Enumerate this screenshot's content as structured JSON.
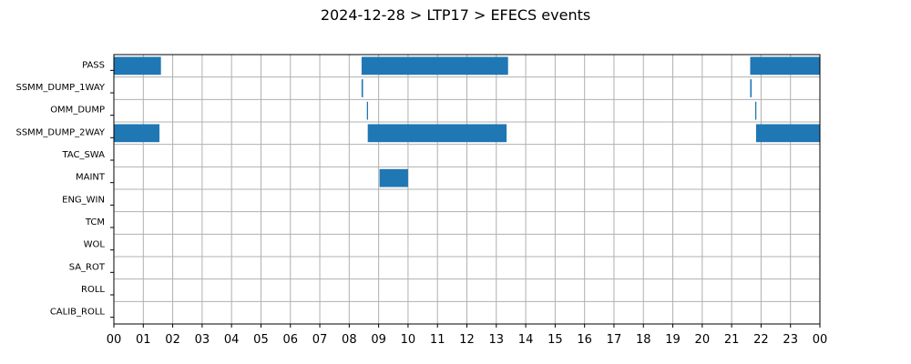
{
  "chart_data": {
    "type": "bar",
    "orientation": "horizontal-timeline",
    "title": "2024-12-28 > LTP17 > EFECS events",
    "xlabel": "",
    "ylabel": "",
    "x_unit": "hour",
    "xlim": [
      0,
      24
    ],
    "x_tick_labels": [
      "00",
      "01",
      "02",
      "03",
      "04",
      "05",
      "06",
      "07",
      "08",
      "09",
      "10",
      "11",
      "12",
      "13",
      "14",
      "15",
      "16",
      "17",
      "18",
      "19",
      "20",
      "21",
      "22",
      "23",
      "00"
    ],
    "categories": [
      "PASS",
      "SSMM_DUMP_1WAY",
      "OMM_DUMP",
      "SSMM_DUMP_2WAY",
      "TAC_SWA",
      "MAINT",
      "ENG_WIN",
      "TCM",
      "WOL",
      "SA_ROT",
      "ROLL",
      "CALIB_ROLL"
    ],
    "grid": true,
    "bar_color": "#1f77b4",
    "events": [
      {
        "category": "PASS",
        "start": 0.0,
        "end": 1.6
      },
      {
        "category": "PASS",
        "start": 8.42,
        "end": 13.4
      },
      {
        "category": "PASS",
        "start": 21.63,
        "end": 24.0
      },
      {
        "category": "SSMM_DUMP_1WAY",
        "start": 8.42,
        "end": 8.47
      },
      {
        "category": "SSMM_DUMP_1WAY",
        "start": 21.63,
        "end": 21.68
      },
      {
        "category": "OMM_DUMP",
        "start": 8.6,
        "end": 8.64
      },
      {
        "category": "OMM_DUMP",
        "start": 21.8,
        "end": 21.84
      },
      {
        "category": "SSMM_DUMP_2WAY",
        "start": 0.0,
        "end": 1.55
      },
      {
        "category": "SSMM_DUMP_2WAY",
        "start": 8.63,
        "end": 13.35
      },
      {
        "category": "SSMM_DUMP_2WAY",
        "start": 21.83,
        "end": 24.0
      },
      {
        "category": "MAINT",
        "start": 9.03,
        "end": 10.0
      }
    ]
  }
}
